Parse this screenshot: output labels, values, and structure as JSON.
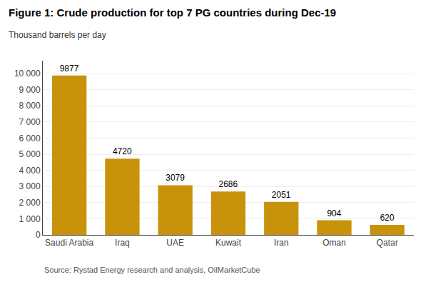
{
  "chart_data": {
    "type": "bar",
    "title": "Figure 1: Crude production for top 7 PG countries during Dec-19",
    "subtitle": "Thousand barrels per day",
    "annotations": [
      "Source: Rystad Energy research and analysis, OilMarketCube"
    ],
    "categories": [
      "Saudi Arabia",
      "Iraq",
      "UAE",
      "Kuwait",
      "Iran",
      "Oman",
      "Qatar"
    ],
    "values": [
      9877,
      4720,
      3079,
      2686,
      2051,
      904,
      620
    ],
    "color": "#C8920A",
    "ylim": [
      0,
      10800
    ],
    "yticks": [
      0,
      {
        "value": 1000,
        "label": "1 000"
      },
      {
        "value": 2000,
        "label": "2 000"
      },
      {
        "value": 3000,
        "label": "3 000"
      },
      {
        "value": 4000,
        "label": "4 000"
      },
      {
        "value": 5000,
        "label": "5 000"
      },
      {
        "value": 6000,
        "label": "6 000"
      },
      {
        "value": 7000,
        "label": "7 000"
      },
      {
        "value": 8000,
        "label": "8 000"
      },
      {
        "value": 9000,
        "label": "9 000"
      },
      {
        "value": 10000,
        "label": "10 000"
      }
    ],
    "grid": true,
    "data_labels": true
  }
}
